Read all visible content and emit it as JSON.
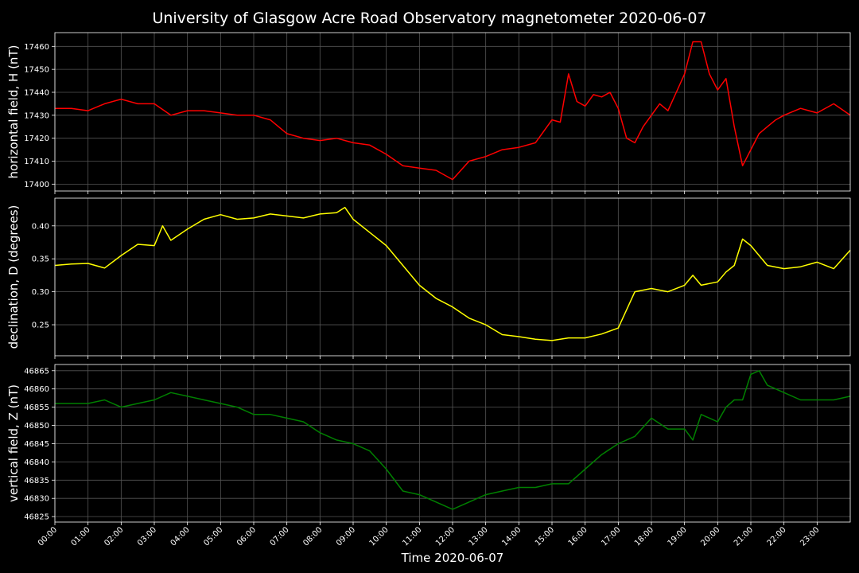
{
  "title": "University of Glasgow Acre Road Observatory magnetometer 2020-06-07",
  "xlabel": "Time 2020-06-07",
  "x_ticks": [
    "00:00",
    "01:00",
    "02:00",
    "03:00",
    "04:00",
    "05:00",
    "06:00",
    "07:00",
    "08:00",
    "09:00",
    "10:00",
    "11:00",
    "12:00",
    "13:00",
    "14:00",
    "15:00",
    "16:00",
    "17:00",
    "18:00",
    "19:00",
    "20:00",
    "21:00",
    "22:00",
    "23:00"
  ],
  "colors": {
    "background": "#000000",
    "grid": "#555555",
    "frame": "#ffffff",
    "text": "#ffffff"
  },
  "chart_data": [
    {
      "type": "line",
      "ylabel": "horizontal field, H (nT)",
      "color": "#ff0000",
      "ylim": [
        17397,
        17466
      ],
      "y_ticks": [
        17400,
        17410,
        17420,
        17430,
        17440,
        17450,
        17460
      ],
      "xlim": [
        0,
        24
      ],
      "grid": true,
      "x": [
        0,
        0.5,
        1,
        1.5,
        2,
        2.5,
        3,
        3.5,
        4,
        4.5,
        5,
        5.5,
        6,
        6.5,
        7,
        7.5,
        8,
        8.5,
        9,
        9.5,
        10,
        10.5,
        11,
        11.5,
        12,
        12.5,
        13,
        13.5,
        14,
        14.5,
        15,
        15.25,
        15.5,
        15.75,
        16,
        16.25,
        16.5,
        16.75,
        17,
        17.25,
        17.5,
        17.75,
        18,
        18.25,
        18.5,
        18.75,
        19,
        19.25,
        19.5,
        19.75,
        20,
        20.25,
        20.5,
        20.75,
        21,
        21.25,
        21.5,
        21.75,
        22,
        22.5,
        23,
        23.5,
        24
      ],
      "values": [
        17433,
        17433,
        17432,
        17435,
        17437,
        17435,
        17435,
        17430,
        17432,
        17432,
        17431,
        17430,
        17430,
        17428,
        17422,
        17420,
        17419,
        17420,
        17418,
        17417,
        17413,
        17408,
        17407,
        17406,
        17402,
        17410,
        17412,
        17415,
        17416,
        17418,
        17428,
        17427,
        17448,
        17436,
        17434,
        17439,
        17438,
        17440,
        17433,
        17420,
        17418,
        17425,
        17430,
        17435,
        17432,
        17440,
        17448,
        17462,
        17462,
        17448,
        17441,
        17446,
        17425,
        17408,
        17415,
        17422,
        17425,
        17428,
        17430,
        17433,
        17431,
        17435,
        17430
      ]
    },
    {
      "type": "line",
      "ylabel": "declination, D (degrees)",
      "color": "#ffff00",
      "ylim": [
        0.203,
        0.442
      ],
      "y_ticks": [
        0.25,
        0.3,
        0.35,
        0.4
      ],
      "xlim": [
        0,
        24
      ],
      "grid": true,
      "x": [
        0,
        0.5,
        1,
        1.5,
        2,
        2.5,
        3,
        3.25,
        3.5,
        4,
        4.5,
        5,
        5.5,
        6,
        6.5,
        7,
        7.5,
        8,
        8.5,
        8.75,
        9,
        9.5,
        10,
        10.5,
        11,
        11.5,
        12,
        12.5,
        13,
        13.5,
        14,
        14.5,
        15,
        15.5,
        16,
        16.5,
        17,
        17.5,
        18,
        18.5,
        19,
        19.25,
        19.5,
        20,
        20.25,
        20.5,
        20.75,
        21,
        21.5,
        22,
        22.5,
        23,
        23.5,
        24
      ],
      "values": [
        0.34,
        0.342,
        0.343,
        0.336,
        0.355,
        0.372,
        0.37,
        0.4,
        0.378,
        0.395,
        0.41,
        0.417,
        0.41,
        0.412,
        0.418,
        0.415,
        0.412,
        0.418,
        0.42,
        0.428,
        0.41,
        0.39,
        0.37,
        0.34,
        0.31,
        0.29,
        0.277,
        0.26,
        0.25,
        0.235,
        0.232,
        0.228,
        0.226,
        0.23,
        0.23,
        0.236,
        0.245,
        0.3,
        0.305,
        0.3,
        0.31,
        0.325,
        0.31,
        0.315,
        0.33,
        0.34,
        0.38,
        0.37,
        0.34,
        0.335,
        0.338,
        0.345,
        0.335,
        0.363
      ]
    },
    {
      "type": "line",
      "ylabel": "vertical field, Z (nT)",
      "color": "#008000",
      "ylim": [
        46823.5,
        46866.7
      ],
      "y_ticks": [
        46825,
        46830,
        46835,
        46840,
        46845,
        46850,
        46855,
        46860,
        46865
      ],
      "xlim": [
        0,
        24
      ],
      "grid": true,
      "x": [
        0,
        0.5,
        1,
        1.5,
        2,
        2.5,
        3,
        3.5,
        4,
        4.5,
        5,
        5.5,
        6,
        6.5,
        7,
        7.5,
        8,
        8.5,
        9,
        9.5,
        10,
        10.5,
        11,
        11.5,
        12,
        12.5,
        13,
        13.5,
        14,
        14.5,
        15,
        15.5,
        16,
        16.5,
        17,
        17.5,
        18,
        18.5,
        19,
        19.25,
        19.5,
        20,
        20.25,
        20.5,
        20.75,
        21,
        21.25,
        21.5,
        22,
        22.5,
        23,
        23.5,
        24
      ],
      "values": [
        46856,
        46856,
        46856,
        46857,
        46855,
        46856,
        46857,
        46859,
        46858,
        46857,
        46856,
        46855,
        46853,
        46853,
        46852,
        46851,
        46848,
        46846,
        46845,
        46843,
        46838,
        46832,
        46831,
        46829,
        46827,
        46829,
        46831,
        46832,
        46833,
        46833,
        46834,
        46834,
        46838,
        46842,
        46845,
        46847,
        46852,
        46849,
        46849,
        46846,
        46853,
        46851,
        46855,
        46857,
        46857,
        46864,
        46865,
        46861,
        46859,
        46857,
        46857,
        46857,
        46858
      ]
    }
  ]
}
